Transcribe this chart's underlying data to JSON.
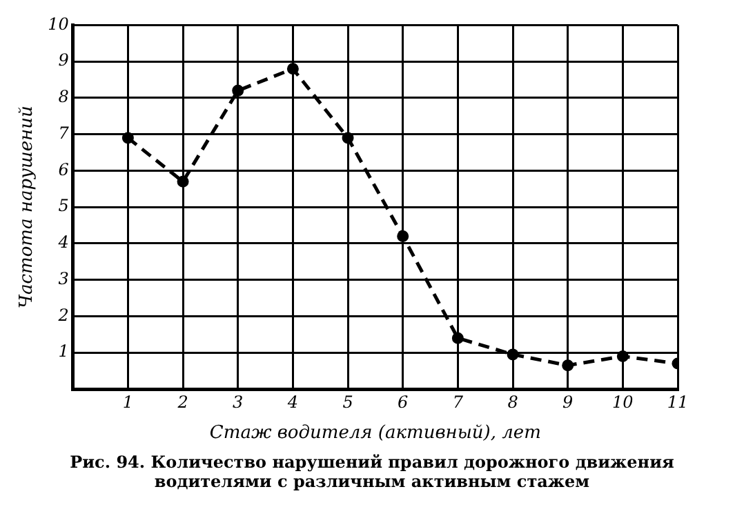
{
  "chart_data": {
    "type": "line",
    "xlabel": "Стаж водителя (активный), лет",
    "ylabel": "Частота нарушений",
    "x": [
      1,
      2,
      3,
      4,
      5,
      6,
      7,
      8,
      9,
      10,
      11
    ],
    "series": [
      {
        "color": "#000000",
        "values": [
          6.9,
          5.7,
          8.2,
          8.8,
          6.9,
          4.2,
          1.4,
          0.95,
          0.65,
          0.9,
          0.7
        ]
      }
    ],
    "xlim": [
      0,
      11
    ],
    "xticks": [
      {
        "value": 0,
        "label": null
      },
      1,
      2,
      3,
      4,
      5,
      6,
      7,
      8,
      9,
      10,
      11
    ],
    "ylim": [
      0,
      10
    ],
    "yticks": [
      {
        "value": 0,
        "label": null
      },
      1,
      2,
      3,
      4,
      5,
      6,
      7,
      8,
      9,
      10
    ],
    "grid": true,
    "legend": false,
    "marker": "circle",
    "line_style": "dashed",
    "annotations": [
      "Рис. 94. Количество нарушений правил дорожного движения водителями с различным активным стажем"
    ]
  }
}
